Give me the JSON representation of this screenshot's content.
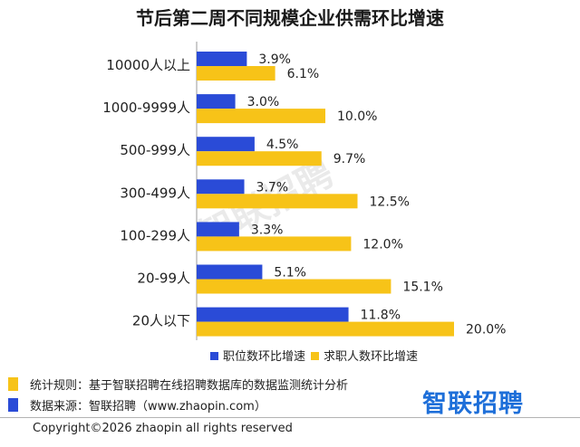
{
  "chart_data": {
    "type": "bar",
    "orientation": "horizontal",
    "title": "节后第二周不同规模企业供需环比增速",
    "categories": [
      "10000人以上",
      "1000-9999人",
      "500-999人",
      "300-499人",
      "100-299人",
      "20-99人",
      "20人以下"
    ],
    "series": [
      {
        "name": "职位数环比增速",
        "values": [
          3.9,
          3.0,
          4.5,
          3.7,
          3.3,
          5.1,
          11.8
        ],
        "labels": [
          "3.9%",
          "3.0%",
          "4.5%",
          "3.7%",
          "3.3%",
          "5.1%",
          "11.8%"
        ],
        "color": "#2a4bd7"
      },
      {
        "name": "求职人数环比增速",
        "values": [
          6.1,
          10.0,
          9.7,
          12.5,
          12.0,
          15.1,
          20.0
        ],
        "labels": [
          "6.1%",
          "10.0%",
          "9.7%",
          "12.5%",
          "12.0%",
          "15.1%",
          "20.0%"
        ],
        "color": "#f7c318"
      }
    ],
    "xlim": [
      0,
      20
    ],
    "grid": false,
    "legend": "bottom"
  },
  "watermark": "智联招聘",
  "footer": {
    "notes": [
      {
        "text": "统计规则：基于智联招聘在线招聘数据库的数据监测统计分析",
        "color": "#f7c318"
      },
      {
        "text": "数据来源：智联招聘（www.zhaopin.com）",
        "color": "#2a4bd7"
      }
    ],
    "logo": "智联招聘",
    "copyright": "Copyright©2026 zhaopin all rights reserved"
  }
}
